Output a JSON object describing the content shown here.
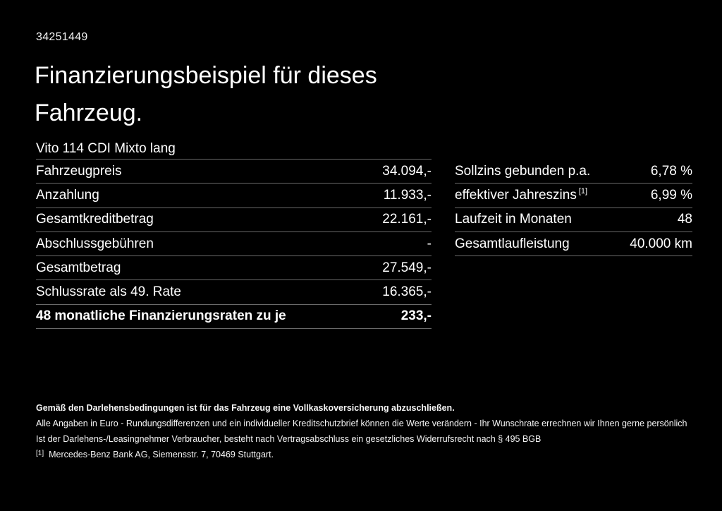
{
  "page": {
    "id_number": "34251449",
    "title_line1": "Finanzierungsbeispiel für dieses",
    "title_line2": "Fahrzeug.",
    "vehicle_name": "Vito 114 CDI Mixto lang"
  },
  "left_table": {
    "rows": [
      {
        "label": "Fahrzeugpreis",
        "value": "34.094,-"
      },
      {
        "label": "Anzahlung",
        "value": "11.933,-"
      },
      {
        "label": "Gesamtkreditbetrag",
        "value": "22.161,-"
      },
      {
        "label": "Abschlussgebühren",
        "value": "-"
      },
      {
        "label": "Gesamtbetrag",
        "value": "27.549,-"
      },
      {
        "label": "Schlussrate als 49. Rate",
        "value": "16.365,-"
      },
      {
        "label": "48 monatliche Finanzierungsraten zu je",
        "value": "233,-"
      }
    ]
  },
  "right_table": {
    "rows": [
      {
        "label": "Sollzins gebunden p.a.",
        "value": "6,78 %"
      },
      {
        "label": "effektiver Jahreszins",
        "label_sup": "[1]",
        "value": "6,99 %"
      },
      {
        "label": "Laufzeit in Monaten",
        "value": "48"
      },
      {
        "label": "Gesamtlaufleistung",
        "value": "40.000 km"
      }
    ]
  },
  "footer": {
    "bold_note": "Gemäß den Darlehensbedingungen ist für das Fahrzeug eine Vollkaskoversicherung abzuschließen.",
    "note_line1": "Alle Angaben in Euro - Rundungsdifferenzen und ein individueller Kreditschutzbrief können die Werte verändern - Ihr Wunschrate errechnen wir Ihnen gerne persönlich",
    "note_line2": "Ist der Darlehens-/Leasingnehmer Verbraucher, besteht nach Vertragsabschluss ein gesetzliches Widerrufsrecht nach § 495 BGB",
    "footnote_marker": "[1]",
    "footnote_text": "Mercedes-Benz Bank AG, Siemensstr. 7, 70469 Stuttgart."
  },
  "colors": {
    "background": "#000000",
    "text": "#ffffff",
    "divider": "#6a6a6a"
  }
}
